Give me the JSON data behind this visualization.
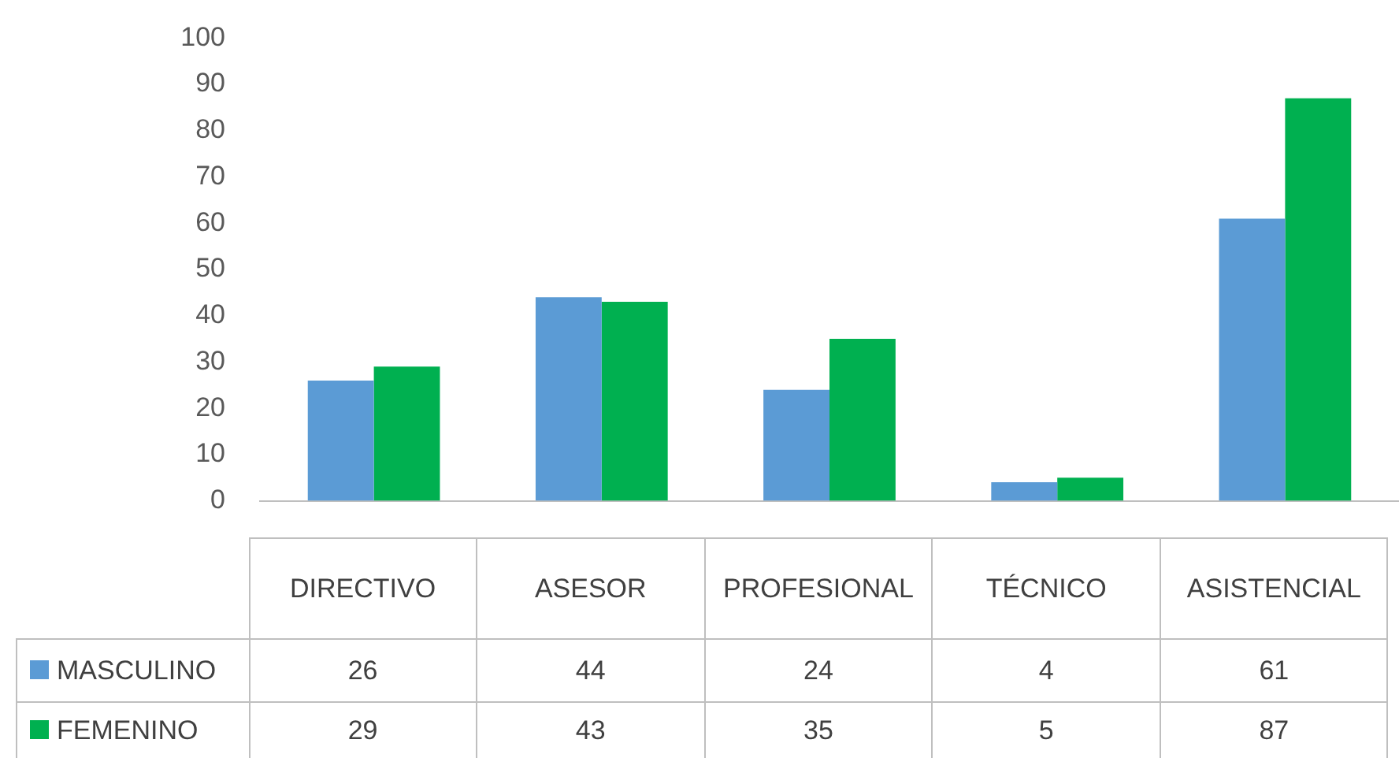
{
  "chart_data": {
    "type": "bar",
    "categories": [
      "DIRECTIVO",
      "ASESOR",
      "PROFESIONAL",
      "TÉCNICO",
      "ASISTENCIAL"
    ],
    "series": [
      {
        "name": "MASCULINO",
        "color": "#5b9bd5",
        "values": [
          26,
          44,
          24,
          4,
          61
        ]
      },
      {
        "name": "FEMENINO",
        "color": "#00b050",
        "values": [
          29,
          43,
          35,
          5,
          87
        ]
      }
    ],
    "ylim": [
      0,
      100
    ],
    "yticks": [
      0,
      10,
      20,
      30,
      40,
      50,
      60,
      70,
      80,
      90,
      100
    ],
    "grid": false,
    "legend": "bottom left",
    "data_labels": true
  }
}
